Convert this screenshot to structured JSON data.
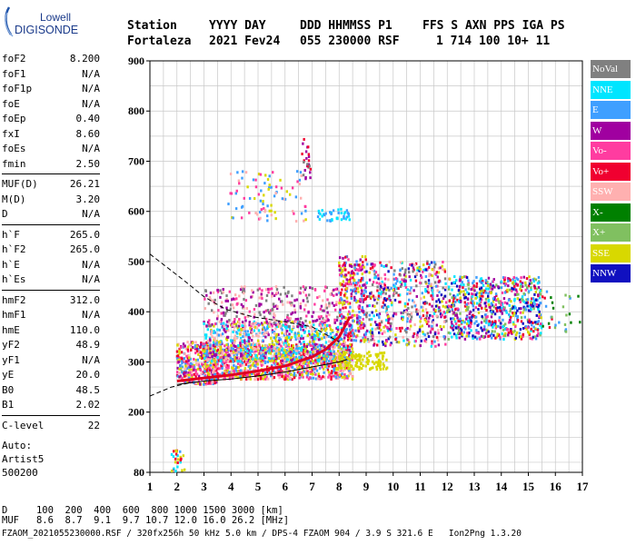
{
  "logo": {
    "line1": "Lowell",
    "line2": "DIGISONDE"
  },
  "header": {
    "columns": [
      "Station",
      "YYYY DAY",
      "DDD HHMMSS P1",
      "FFS S AXN PPS IGA PS"
    ],
    "values": [
      "Fortaleza",
      "2021 Fev24",
      "055 230000 RSF",
      "1 714 100 10+ 11"
    ]
  },
  "params": {
    "group1": [
      {
        "label": "foF2",
        "value": "8.200"
      },
      {
        "label": "foF1",
        "value": "N/A"
      },
      {
        "label": "foF1p",
        "value": "N/A"
      },
      {
        "label": "foE",
        "value": "N/A"
      },
      {
        "label": "foEp",
        "value": "0.40"
      },
      {
        "label": "fxI",
        "value": "8.60"
      },
      {
        "label": "foEs",
        "value": "N/A"
      },
      {
        "label": "fmin",
        "value": "2.50"
      }
    ],
    "group2": [
      {
        "label": "MUF(D)",
        "value": "26.21"
      },
      {
        "label": "M(D)",
        "value": "3.20"
      },
      {
        "label": "D",
        "value": "N/A"
      }
    ],
    "group3": [
      {
        "label": "h`F",
        "value": "265.0"
      },
      {
        "label": "h`F2",
        "value": "265.0"
      },
      {
        "label": "h`E",
        "value": "N/A"
      },
      {
        "label": "h`Es",
        "value": "N/A"
      }
    ],
    "group4": [
      {
        "label": "hmF2",
        "value": "312.0"
      },
      {
        "label": "hmF1",
        "value": "N/A"
      },
      {
        "label": "hmE",
        "value": "110.0"
      },
      {
        "label": "yF2",
        "value": "48.9"
      },
      {
        "label": "yF1",
        "value": "N/A"
      },
      {
        "label": "yE",
        "value": "20.0"
      },
      {
        "label": "B0",
        "value": "48.5"
      },
      {
        "label": "B1",
        "value": "2.02"
      }
    ],
    "group5": [
      {
        "label": "C-level",
        "value": "22"
      }
    ]
  },
  "auto": {
    "line1": "Auto:",
    "line2": "Artist5",
    "line3": "500200"
  },
  "legend": [
    {
      "label": "NoVal",
      "color": "#808080"
    },
    {
      "label": "NNE",
      "color": "#00e5ff"
    },
    {
      "label": "E",
      "color": "#3f9fff"
    },
    {
      "label": "W",
      "color": "#a000a0"
    },
    {
      "label": "Vo-",
      "color": "#ff3ca0"
    },
    {
      "label": "Vo+",
      "color": "#f00030"
    },
    {
      "label": "SSW",
      "color": "#ffb0b0"
    },
    {
      "label": "X-",
      "color": "#008000"
    },
    {
      "label": "X+",
      "color": "#80c060"
    },
    {
      "label": "SSE",
      "color": "#d8d800"
    },
    {
      "label": "NNW",
      "color": "#1010c0"
    }
  ],
  "chart_data": {
    "type": "scatter",
    "x_ticks": [
      1,
      2,
      3,
      4,
      5,
      6,
      7,
      8,
      9,
      10,
      11,
      12,
      13,
      14,
      15,
      16,
      17
    ],
    "y_ticks": [
      80,
      200,
      300,
      400,
      500,
      600,
      700,
      800,
      900
    ],
    "xlim": [
      1,
      17
    ],
    "ylim": [
      80,
      900
    ],
    "grid": true,
    "clusters": [
      {
        "x": [
          1.8,
          2.3
        ],
        "y": [
          82,
          125
        ],
        "count": 25,
        "colors": [
          "#3f9fff",
          "#00e5ff",
          "#d8d800",
          "#f00030"
        ]
      },
      {
        "x": [
          2.0,
          3.5
        ],
        "y": [
          255,
          340
        ],
        "count": 350,
        "colors": [
          "#f00030",
          "#d8d800",
          "#ffb0b0",
          "#3f9fff",
          "#ff3ca0",
          "#a000a0"
        ]
      },
      {
        "x": [
          3.0,
          8.5
        ],
        "y": [
          265,
          335
        ],
        "count": 1100,
        "colors": [
          "#f00030",
          "#d8d800",
          "#ffb0b0",
          "#ff3ca0",
          "#3f9fff"
        ]
      },
      {
        "x": [
          3.0,
          8.5
        ],
        "y": [
          300,
          380
        ],
        "count": 800,
        "colors": [
          "#3f9fff",
          "#ffb0b0",
          "#d8d800",
          "#a000a0",
          "#00e5ff"
        ]
      },
      {
        "x": [
          3.0,
          8.0
        ],
        "y": [
          370,
          450
        ],
        "count": 300,
        "colors": [
          "#a000a0",
          "#ff3ca0",
          "#808080",
          "#ffb0b0"
        ]
      },
      {
        "x": [
          3.8,
          6.8
        ],
        "y": [
          580,
          680
        ],
        "count": 90,
        "colors": [
          "#d8d800",
          "#ffb0b0",
          "#ff3ca0",
          "#3f9fff"
        ]
      },
      {
        "x": [
          6.6,
          7.0
        ],
        "y": [
          665,
          745
        ],
        "count": 25,
        "colors": [
          "#f00030",
          "#a000a0",
          "#808080"
        ]
      },
      {
        "x": [
          7.2,
          8.4
        ],
        "y": [
          580,
          605
        ],
        "count": 40,
        "colors": [
          "#00e5ff",
          "#3f9fff"
        ]
      },
      {
        "x": [
          8.0,
          9.0
        ],
        "y": [
          340,
          510
        ],
        "count": 300,
        "colors": [
          "#f00030",
          "#ff3ca0",
          "#a000a0",
          "#3f9fff",
          "#d8d800"
        ]
      },
      {
        "x": [
          8.0,
          9.8
        ],
        "y": [
          285,
          320
        ],
        "count": 120,
        "colors": [
          "#d8d800"
        ]
      },
      {
        "x": [
          9.0,
          12.0
        ],
        "y": [
          330,
          500
        ],
        "count": 520,
        "colors": [
          "#ffb0b0",
          "#f00030",
          "#3f9fff",
          "#00e5ff",
          "#ff3ca0",
          "#a000a0",
          "#d8d800",
          "#1010c0",
          "#808080"
        ]
      },
      {
        "x": [
          12.0,
          15.5
        ],
        "y": [
          345,
          470
        ],
        "count": 700,
        "colors": [
          "#1010c0",
          "#3f9fff",
          "#00e5ff",
          "#ff3ca0",
          "#a000a0",
          "#80c060",
          "#d8d800",
          "#f00030"
        ]
      },
      {
        "x": [
          15.5,
          17.0
        ],
        "y": [
          360,
          440
        ],
        "count": 30,
        "colors": [
          "#008000",
          "#80c060",
          "#3f9fff",
          "#f00030"
        ]
      }
    ],
    "curves": [
      {
        "name": "trace",
        "style": "red-thick",
        "points": [
          [
            2.0,
            262
          ],
          [
            3.0,
            268
          ],
          [
            4.0,
            274
          ],
          [
            5.0,
            282
          ],
          [
            6.0,
            292
          ],
          [
            7.0,
            310
          ],
          [
            7.5,
            325
          ],
          [
            8.0,
            350
          ],
          [
            8.2,
            370
          ],
          [
            8.4,
            390
          ]
        ]
      },
      {
        "name": "lower",
        "style": "black-solid",
        "points": [
          [
            2.0,
            255
          ],
          [
            3.0,
            262
          ],
          [
            4.0,
            266
          ],
          [
            5.0,
            272
          ],
          [
            6.0,
            280
          ],
          [
            7.0,
            290
          ],
          [
            8.0,
            300
          ],
          [
            8.3,
            305
          ]
        ]
      },
      {
        "name": "dashed-lower",
        "style": "black-dashed",
        "points": [
          [
            1.0,
            232
          ],
          [
            1.8,
            250
          ],
          [
            2.6,
            260
          ]
        ]
      },
      {
        "name": "dashed-upper",
        "style": "black-dashed",
        "points": [
          [
            1.0,
            515
          ],
          [
            1.6,
            490
          ],
          [
            2.2,
            465
          ],
          [
            3.0,
            430
          ],
          [
            3.8,
            405
          ],
          [
            4.8,
            390
          ],
          [
            6.0,
            380
          ],
          [
            7.0,
            370
          ],
          [
            8.0,
            340
          ]
        ]
      }
    ]
  },
  "footer": {
    "row_d_label": "D",
    "row_d_values": "100  200  400  600  800 1000 1500 3000 [km]",
    "row_muf_label": "MUF",
    "row_muf_values": "8.6  8.7  9.1  9.7 10.7 12.0 16.0 26.2 [MHz]",
    "status": "FZAOM_2021055230000.RSF / 320fx256h 50 kHz 5.0 km / DPS-4 FZAOM 904 / 3.9 S 321.6 E   Ion2Png 1.3.20"
  }
}
